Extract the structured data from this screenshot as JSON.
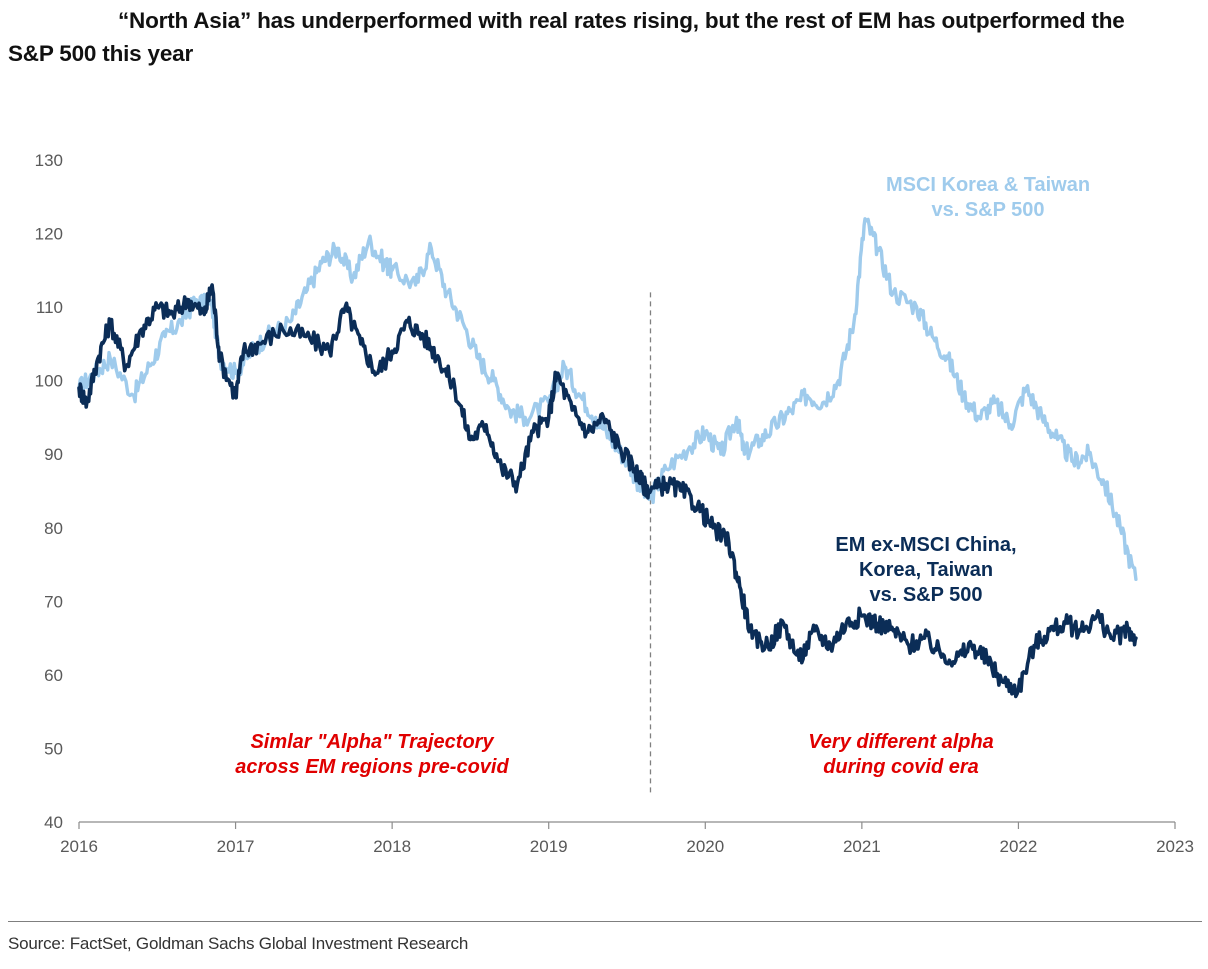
{
  "title": {
    "line1": "“North Asia” has underperformed with real rates rising, but the rest of EM has outperformed the",
    "line2": "S&P 500 this year"
  },
  "source": "Source: FactSet, Goldman Sachs Global Investment Research",
  "chart_data": {
    "type": "line",
    "title": "“North Asia” has underperformed with real rates rising, but the rest of EM has outperformed the S&P 500 this year",
    "xlim": [
      2016,
      2023
    ],
    "ylim": [
      40,
      130
    ],
    "x_ticks": [
      "2016",
      "2017",
      "2018",
      "2019",
      "2020",
      "2021",
      "2022",
      "2023"
    ],
    "y_ticks": [
      "40",
      "50",
      "60",
      "70",
      "80",
      "90",
      "100",
      "110",
      "120",
      "130"
    ],
    "grid": false,
    "vline": {
      "x": 2019.65,
      "style": "dashed",
      "y_range": [
        44,
        112
      ]
    },
    "series": [
      {
        "name": "MSCI Korea & Taiwan vs. S&P 500",
        "color": "#9fcbec",
        "x": [
          2016.0,
          2016.1,
          2016.2,
          2016.35,
          2016.45,
          2016.55,
          2016.65,
          2016.75,
          2016.85,
          2016.9,
          2017.0,
          2017.1,
          2017.2,
          2017.35,
          2017.45,
          2017.55,
          2017.65,
          2017.75,
          2017.85,
          2017.95,
          2018.0,
          2018.15,
          2018.25,
          2018.35,
          2018.45,
          2018.55,
          2018.65,
          2018.75,
          2018.85,
          2019.0,
          2019.1,
          2019.2,
          2019.3,
          2019.4,
          2019.5,
          2019.6,
          2019.65,
          2019.75,
          2019.9,
          2020.0,
          2020.1,
          2020.2,
          2020.25,
          2020.35,
          2020.45,
          2020.55,
          2020.65,
          2020.75,
          2020.85,
          2020.95,
          2021.02,
          2021.1,
          2021.2,
          2021.35,
          2021.45,
          2021.55,
          2021.65,
          2021.75,
          2021.85,
          2021.95,
          2022.05,
          2022.15,
          2022.25,
          2022.35,
          2022.45,
          2022.55,
          2022.65,
          2022.75
        ],
        "y": [
          99,
          101,
          103,
          98,
          102,
          106,
          108,
          111,
          110,
          103,
          101,
          104,
          106,
          108,
          112,
          116,
          118,
          114,
          119,
          116,
          115,
          113,
          118,
          112,
          108,
          103,
          100,
          96,
          95,
          97,
          102,
          98,
          95,
          92,
          89,
          85,
          84,
          88,
          91,
          93,
          90,
          95,
          90,
          92,
          94,
          96,
          98,
          97,
          100,
          108,
          122,
          118,
          112,
          110,
          106,
          103,
          98,
          95,
          97,
          94,
          99,
          95,
          92,
          89,
          90,
          86,
          80,
          73
        ]
      },
      {
        "name": "EM ex-MSCI China, Korea, Taiwan vs. S&P 500",
        "color": "#0b2d57",
        "x": [
          2016.0,
          2016.05,
          2016.12,
          2016.2,
          2016.3,
          2016.4,
          2016.5,
          2016.6,
          2016.7,
          2016.8,
          2016.85,
          2016.9,
          2017.0,
          2017.05,
          2017.15,
          2017.3,
          2017.45,
          2017.6,
          2017.7,
          2017.8,
          2017.9,
          2018.0,
          2018.1,
          2018.2,
          2018.3,
          2018.4,
          2018.5,
          2018.6,
          2018.7,
          2018.8,
          2018.9,
          2019.0,
          2019.05,
          2019.15,
          2019.25,
          2019.35,
          2019.45,
          2019.55,
          2019.6,
          2019.65,
          2019.75,
          2019.85,
          2019.95,
          2020.05,
          2020.15,
          2020.22,
          2020.3,
          2020.4,
          2020.5,
          2020.6,
          2020.7,
          2020.8,
          2020.9,
          2021.0,
          2021.1,
          2021.2,
          2021.3,
          2021.4,
          2021.5,
          2021.6,
          2021.7,
          2021.8,
          2021.9,
          2022.0,
          2022.1,
          2022.2,
          2022.3,
          2022.4,
          2022.5,
          2022.6,
          2022.7,
          2022.75
        ],
        "y": [
          99,
          97,
          103,
          108,
          102,
          107,
          110,
          109,
          111,
          109,
          113,
          103,
          98,
          104,
          105,
          107,
          106,
          104,
          110,
          105,
          101,
          104,
          108,
          106,
          103,
          99,
          92,
          94,
          88,
          86,
          93,
          95,
          101,
          96,
          93,
          95,
          91,
          88,
          86,
          85,
          86,
          85,
          83,
          80,
          78,
          72,
          65,
          64,
          67,
          62,
          66,
          64,
          67,
          68,
          67,
          66,
          64,
          65,
          63,
          62,
          64,
          62,
          59,
          58,
          64,
          66,
          67,
          66,
          68,
          65,
          66,
          65
        ]
      }
    ],
    "annotations": [
      {
        "lines": [
          "MSCI Korea & Taiwan",
          "vs. S&P 500"
        ],
        "color": "#9fcbec"
      },
      {
        "lines": [
          "EM ex-MSCI China,",
          "Korea, Taiwan",
          "vs. S&P 500"
        ],
        "color": "#0b2d57"
      },
      {
        "lines": [
          "Simlar \"Alpha\" Trajectory",
          "across EM regions pre-covid"
        ],
        "color": "#e00000"
      },
      {
        "lines": [
          "Very different alpha",
          "during covid era"
        ],
        "color": "#e00000"
      }
    ]
  }
}
